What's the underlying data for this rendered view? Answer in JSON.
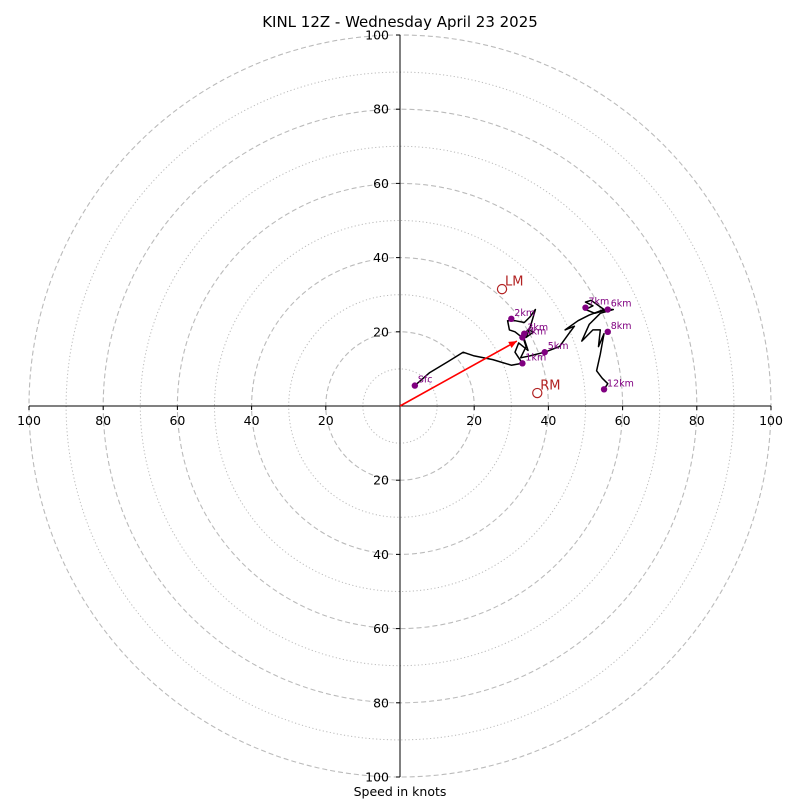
{
  "chart_data": {
    "type": "hodograph",
    "title": "KINL 12Z - Wednesday April 23 2025",
    "xlabel": "Speed in knots",
    "units": "knots",
    "xlim": [
      -100,
      100
    ],
    "ylim": [
      -100,
      100
    ],
    "rings_major": [
      20,
      40,
      60,
      80,
      100
    ],
    "rings_minor": [
      10,
      30,
      50,
      70,
      90
    ],
    "x_ticks": [
      {
        "value": -100,
        "label": "100"
      },
      {
        "value": -80,
        "label": "80"
      },
      {
        "value": -60,
        "label": "60"
      },
      {
        "value": -40,
        "label": "40"
      },
      {
        "value": -20,
        "label": "20"
      },
      {
        "value": 20,
        "label": "20"
      },
      {
        "value": 40,
        "label": "40"
      },
      {
        "value": 60,
        "label": "60"
      },
      {
        "value": 80,
        "label": "80"
      },
      {
        "value": 100,
        "label": "100"
      }
    ],
    "y_ticks": [
      {
        "value": 100,
        "label": "100"
      },
      {
        "value": 80,
        "label": "80"
      },
      {
        "value": 60,
        "label": "60"
      },
      {
        "value": 40,
        "label": "40"
      },
      {
        "value": 20,
        "label": "20"
      },
      {
        "value": -20,
        "label": "20"
      },
      {
        "value": -40,
        "label": "40"
      },
      {
        "value": -60,
        "label": "60"
      },
      {
        "value": -80,
        "label": "80"
      },
      {
        "value": -100,
        "label": "100"
      }
    ],
    "grid": true,
    "colors": {
      "trace": "#000000",
      "height_markers": "#800080",
      "storm_motion": "#b22222",
      "mean_wind_vector": "#ff0000",
      "grid": "#bbbbbb"
    },
    "hodograph_trace": [
      [
        4,
        5.5
      ],
      [
        8,
        9
      ],
      [
        13,
        12
      ],
      [
        17,
        14.5
      ],
      [
        20,
        13.5
      ],
      [
        25,
        12.5
      ],
      [
        30,
        11
      ],
      [
        33,
        11.5
      ],
      [
        32,
        13
      ],
      [
        31,
        14.5
      ],
      [
        32,
        17
      ],
      [
        34.5,
        15
      ],
      [
        33.5,
        18
      ],
      [
        31,
        20
      ],
      [
        29.5,
        20.5
      ],
      [
        29,
        23
      ],
      [
        31,
        23
      ],
      [
        33.5,
        22.5
      ],
      [
        35,
        24
      ],
      [
        36.5,
        26
      ],
      [
        35,
        21
      ],
      [
        34,
        18.5
      ],
      [
        36,
        20
      ],
      [
        34.5,
        20.5
      ],
      [
        33,
        19
      ],
      [
        34,
        16
      ],
      [
        32.5,
        13
      ],
      [
        35,
        13.5
      ],
      [
        39,
        14.5
      ],
      [
        43,
        16
      ],
      [
        45.5,
        19.5
      ],
      [
        47,
        21.5
      ],
      [
        44.5,
        20.5
      ],
      [
        48,
        23
      ],
      [
        51,
        24.5
      ],
      [
        55,
        26
      ],
      [
        51.5,
        28.5
      ],
      [
        50,
        28
      ],
      [
        52,
        27
      ],
      [
        50,
        26
      ],
      [
        52.5,
        25
      ],
      [
        56,
        26
      ],
      [
        57.5,
        26
      ],
      [
        54,
        25
      ],
      [
        51,
        22
      ],
      [
        49,
        17.5
      ],
      [
        52,
        20.5
      ],
      [
        54,
        20.5
      ],
      [
        53.5,
        16
      ],
      [
        55,
        19.5
      ],
      [
        54,
        14
      ],
      [
        53,
        9.5
      ],
      [
        54.5,
        7.5
      ],
      [
        56,
        6
      ],
      [
        55,
        4.5
      ]
    ],
    "height_markers": [
      {
        "label": "Sfc",
        "u": 4,
        "v": 5.5
      },
      {
        "label": "1km",
        "u": 33,
        "v": 11.5
      },
      {
        "label": "2km",
        "u": 30,
        "v": 23.5
      },
      {
        "label": "3km",
        "u": 33.5,
        "v": 19.5
      },
      {
        "label": "4km",
        "u": 33,
        "v": 18.5
      },
      {
        "label": "5km",
        "u": 39,
        "v": 14.5
      },
      {
        "label": "6km",
        "u": 56,
        "v": 26
      },
      {
        "label": "7km",
        "u": 50,
        "v": 26.5
      },
      {
        "label": "8km",
        "u": 56,
        "v": 20
      },
      {
        "label": "12km",
        "u": 55,
        "v": 4.5
      }
    ],
    "storm_motion": [
      {
        "label": "LM",
        "u": 27.5,
        "v": 31.5
      },
      {
        "label": "RM",
        "u": 37,
        "v": 3.5
      }
    ],
    "mean_wind_vector": {
      "u": 31.5,
      "v": 17.5
    }
  }
}
